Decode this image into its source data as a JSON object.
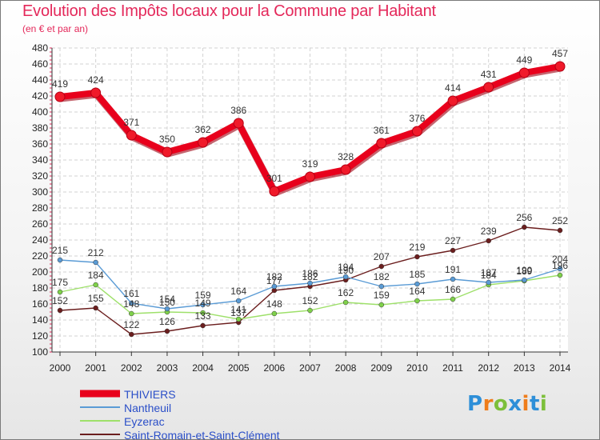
{
  "title": "Evolution des Impôts locaux pour la Commune par Habitant",
  "subtitle": "(en € et par an)",
  "logo": {
    "text": "Proxiti",
    "colors": [
      "#2e8fd8",
      "#ef7d1b",
      "#7cbf3a",
      "#2e8fd8",
      "#ef7d1b",
      "#2e8fd8",
      "#7cbf3a"
    ]
  },
  "chart_data": {
    "type": "line",
    "title": "Evolution des Impôts locaux pour la Commune par Habitant",
    "ylabel": "(en € et par an)",
    "xlabel": "",
    "ylim": [
      100,
      480
    ],
    "yticks": [
      "100",
      "120",
      "140",
      "160",
      "180",
      "200",
      "220",
      "240",
      "260",
      "280",
      "300",
      "320",
      "340",
      "360",
      "380",
      "400",
      "420",
      "440",
      "460",
      "480"
    ],
    "categories": [
      "2000",
      "2001",
      "2002",
      "2003",
      "2004",
      "2005",
      "2006",
      "2007",
      "2008",
      "2009",
      "2010",
      "2011",
      "2012",
      "2013",
      "2014"
    ],
    "grid": true,
    "legend_position": "bottom-left",
    "series": [
      {
        "name": "THIVIERS",
        "color": "#e8001c",
        "marker": "#f01a2a",
        "values": [
          419,
          424,
          371,
          350,
          362,
          386,
          301,
          319,
          328,
          361,
          376,
          414,
          431,
          449,
          457
        ],
        "labels": [
          "419",
          "424",
          "371",
          "350",
          "362",
          "386",
          "301",
          "319",
          "328",
          "361",
          "376",
          "414",
          "431",
          "449",
          "457"
        ]
      },
      {
        "name": "Nantheuil",
        "color": "#5a9bd5",
        "marker": "#5a9bd5",
        "values": [
          215,
          212,
          161,
          154,
          159,
          164,
          182,
          186,
          194,
          182,
          185,
          191,
          187,
          190,
          204
        ],
        "labels": [
          "215",
          "212",
          "161",
          "154",
          "159",
          "164",
          "182",
          "186",
          "194",
          "182",
          "185",
          "191",
          "187",
          "190",
          "204"
        ]
      },
      {
        "name": "Eyzerac",
        "color": "#9ee06a",
        "marker": "#7fd14a",
        "values": [
          175,
          184,
          148,
          150,
          149,
          141,
          148,
          152,
          162,
          159,
          164,
          166,
          184,
          189,
          196
        ],
        "labels": [
          "175",
          "184",
          "148",
          "150",
          "149",
          "141",
          "148",
          "152",
          "162",
          "159",
          "164",
          "166",
          "184",
          "189",
          "196"
        ]
      },
      {
        "name": "Saint-Romain-et-Saint-Clément",
        "color": "#6b1e1e",
        "marker": "#6b1e1e",
        "values": [
          152,
          155,
          122,
          126,
          133,
          137,
          177,
          182,
          190,
          207,
          219,
          227,
          239,
          256,
          252
        ],
        "labels": [
          "152",
          "155",
          "122",
          "126",
          "133",
          "137",
          "177",
          "182",
          "190",
          "207",
          "219",
          "227",
          "239",
          "256",
          "252"
        ]
      }
    ]
  }
}
